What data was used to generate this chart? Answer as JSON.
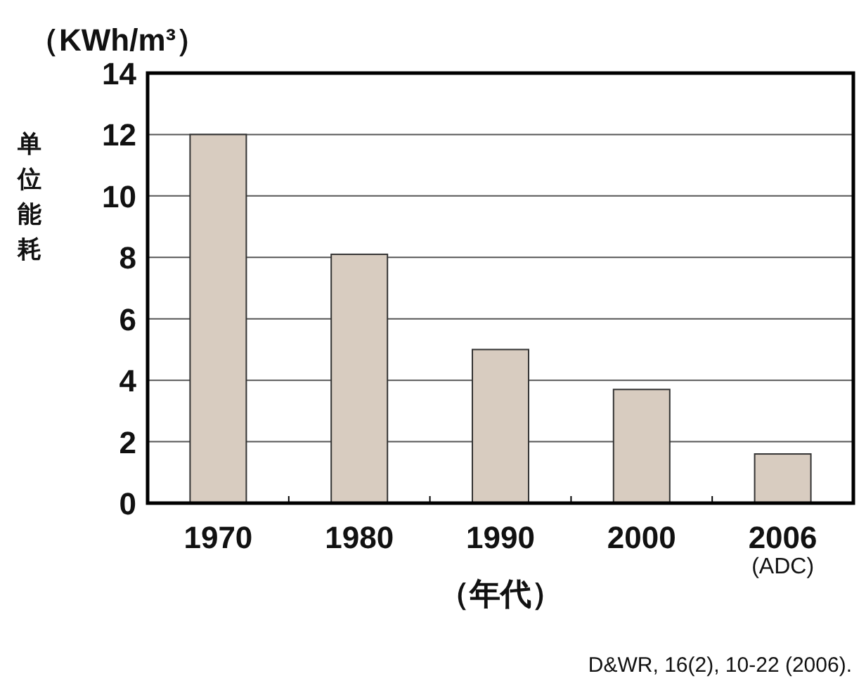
{
  "chart_data": {
    "type": "bar",
    "categories": [
      "1970",
      "1980",
      "1990",
      "2000",
      "2006\n(ADC)"
    ],
    "values": [
      12.0,
      8.1,
      5.0,
      3.7,
      1.6
    ],
    "color": "#d8ccc0",
    "ylabel": "单位能耗",
    "xlabel": "（年代）",
    "ylim": [
      0,
      14
    ],
    "yticks": [
      0,
      2,
      4,
      6,
      8,
      10,
      12,
      14
    ],
    "grid": "y",
    "annotations": [
      "（KWh/m³）",
      "D&WR, 16(2), 10-22 (2006)."
    ]
  }
}
